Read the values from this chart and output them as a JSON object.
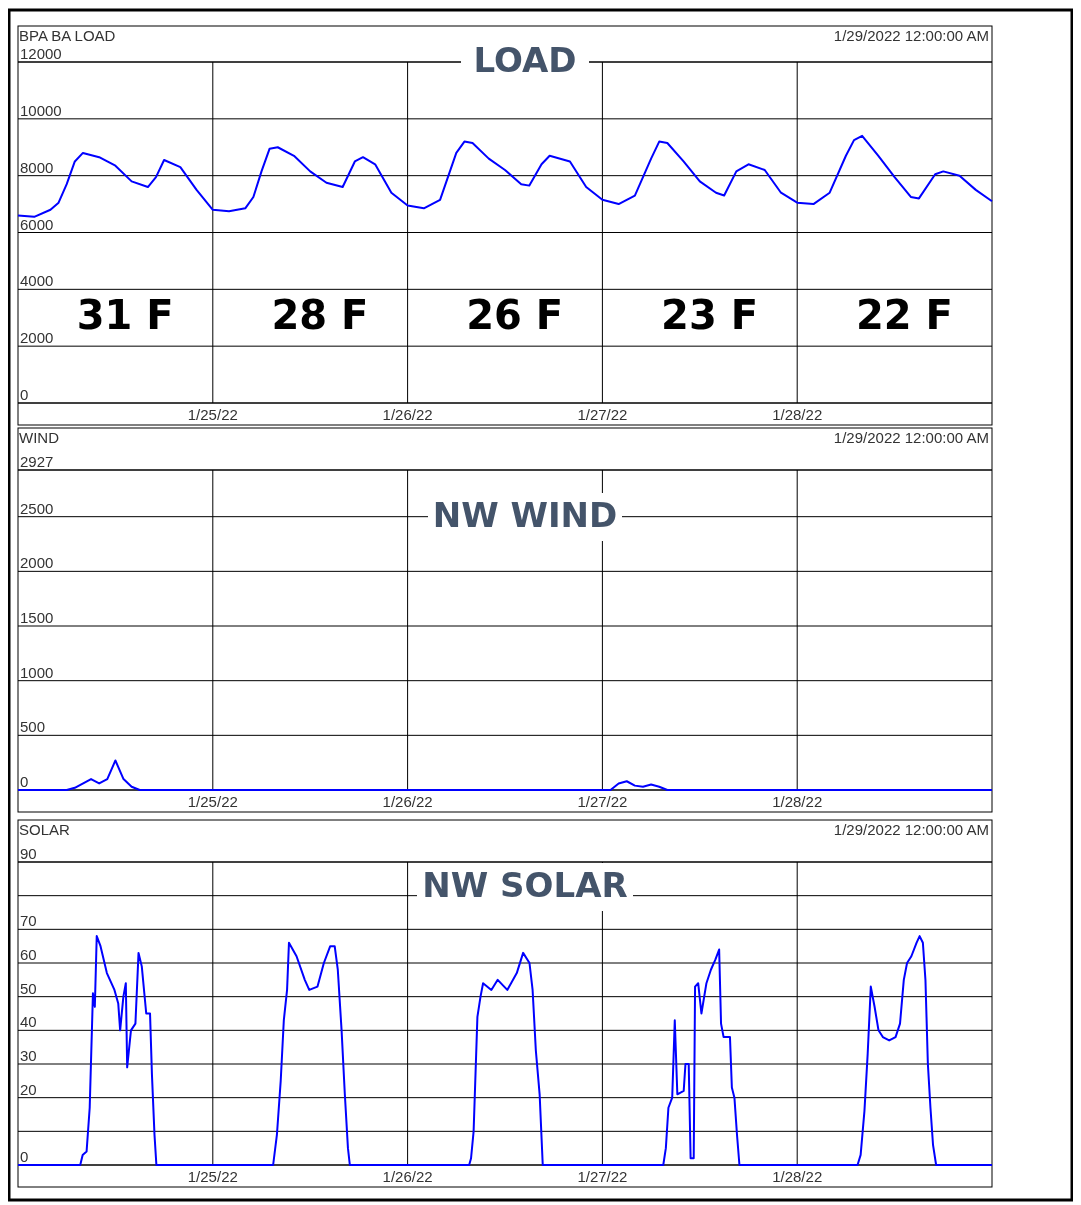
{
  "chart_data": [
    {
      "type": "line",
      "title": "LOAD",
      "subtitle": "BPA BA LOAD",
      "annotations": [
        "1/29/2022 12:00:00 AM",
        "31 F",
        "28 F",
        "26 F",
        "23 F",
        "22 F"
      ],
      "xlim": [
        "2022-01-24",
        "2022-01-29"
      ],
      "xticks": [
        {
          "value": "2022-01-25",
          "label": "1/25/22"
        },
        {
          "value": "2022-01-26",
          "label": "1/26/22"
        },
        {
          "value": "2022-01-27",
          "label": "1/27/22"
        },
        {
          "value": "2022-01-28",
          "label": "1/28/22"
        }
      ],
      "ylim": [
        0,
        12000
      ],
      "yticks": [
        0,
        2000,
        4000,
        6000,
        8000,
        10000,
        12000
      ],
      "grid": true,
      "series": [
        {
          "color": "#0000ff",
          "x": [
            "2022-01-24T00:00",
            "2022-01-24T02:00",
            "2022-01-24T04:00",
            "2022-01-24T05:00",
            "2022-01-24T06:00",
            "2022-01-24T07:00",
            "2022-01-24T08:00",
            "2022-01-24T10:00",
            "2022-01-24T12:00",
            "2022-01-24T14:00",
            "2022-01-24T16:00",
            "2022-01-24T17:00",
            "2022-01-24T18:00",
            "2022-01-24T20:00",
            "2022-01-24T22:00",
            "2022-01-25T00:00",
            "2022-01-25T02:00",
            "2022-01-25T04:00",
            "2022-01-25T05:00",
            "2022-01-25T06:00",
            "2022-01-25T07:00",
            "2022-01-25T08:00",
            "2022-01-25T10:00",
            "2022-01-25T12:00",
            "2022-01-25T14:00",
            "2022-01-25T16:00",
            "2022-01-25T17:30",
            "2022-01-25T18:30",
            "2022-01-25T20:00",
            "2022-01-25T22:00",
            "2022-01-26T00:00",
            "2022-01-26T02:00",
            "2022-01-26T04:00",
            "2022-01-26T06:00",
            "2022-01-26T07:00",
            "2022-01-26T08:00",
            "2022-01-26T10:00",
            "2022-01-26T12:00",
            "2022-01-26T14:00",
            "2022-01-26T15:00",
            "2022-01-26T16:30",
            "2022-01-26T17:30",
            "2022-01-26T20:00",
            "2022-01-26T22:00",
            "2022-01-27T00:00",
            "2022-01-27T02:00",
            "2022-01-27T04:00",
            "2022-01-27T06:00",
            "2022-01-27T07:00",
            "2022-01-27T08:00",
            "2022-01-27T10:00",
            "2022-01-27T12:00",
            "2022-01-27T14:00",
            "2022-01-27T15:00",
            "2022-01-27T16:30",
            "2022-01-27T18:00",
            "2022-01-27T20:00",
            "2022-01-27T22:00",
            "2022-01-28T00:00",
            "2022-01-28T02:00",
            "2022-01-28T04:00",
            "2022-01-28T06:00",
            "2022-01-28T07:00",
            "2022-01-28T08:00",
            "2022-01-28T10:00",
            "2022-01-28T12:00",
            "2022-01-28T14:00",
            "2022-01-28T15:00",
            "2022-01-28T17:00",
            "2022-01-28T18:00",
            "2022-01-28T20:00",
            "2022-01-28T22:00",
            "2022-01-29T00:00"
          ],
          "values": [
            6600,
            6550,
            6800,
            7050,
            7700,
            8500,
            8800,
            8650,
            8350,
            7800,
            7600,
            7950,
            8550,
            8300,
            7500,
            6800,
            6750,
            6850,
            7250,
            8150,
            8950,
            9000,
            8700,
            8150,
            7750,
            7600,
            8500,
            8650,
            8400,
            7400,
            6950,
            6850,
            7150,
            8800,
            9200,
            9150,
            8600,
            8200,
            7700,
            7650,
            8400,
            8700,
            8500,
            7600,
            7150,
            7000,
            7300,
            8600,
            9200,
            9150,
            8500,
            7800,
            7400,
            7300,
            8150,
            8400,
            8200,
            7400,
            7050,
            7000,
            7400,
            8700,
            9250,
            9400,
            8700,
            7950,
            7250,
            7200,
            8050,
            8150,
            8000,
            7500,
            7100
          ]
        }
      ]
    },
    {
      "type": "line",
      "title": "NW WIND",
      "subtitle": "WIND",
      "annotations": [
        "1/29/2022 12:00:00 AM"
      ],
      "xlim": [
        "2022-01-24",
        "2022-01-29"
      ],
      "xticks": [
        {
          "value": "2022-01-25",
          "label": "1/25/22"
        },
        {
          "value": "2022-01-26",
          "label": "1/26/22"
        },
        {
          "value": "2022-01-27",
          "label": "1/27/22"
        },
        {
          "value": "2022-01-28",
          "label": "1/28/22"
        }
      ],
      "ylim": [
        0,
        2927
      ],
      "yticks": [
        0,
        500,
        1000,
        1500,
        2000,
        2500,
        2927
      ],
      "grid": true,
      "series": [
        {
          "color": "#0000ff",
          "x": [
            "2022-01-24T00:00",
            "2022-01-24T06:00",
            "2022-01-24T07:00",
            "2022-01-24T09:00",
            "2022-01-24T10:00",
            "2022-01-24T11:00",
            "2022-01-24T12:00",
            "2022-01-24T13:00",
            "2022-01-24T14:00",
            "2022-01-24T15:00",
            "2022-01-25T00:00",
            "2022-01-26T00:00",
            "2022-01-27T00:00",
            "2022-01-27T01:00",
            "2022-01-27T02:00",
            "2022-01-27T03:00",
            "2022-01-27T04:00",
            "2022-01-27T05:00",
            "2022-01-27T06:00",
            "2022-01-27T07:00",
            "2022-01-27T08:00",
            "2022-01-28T00:00",
            "2022-01-29T00:00"
          ],
          "values": [
            0,
            0,
            20,
            100,
            60,
            100,
            270,
            100,
            30,
            0,
            0,
            0,
            0,
            0,
            60,
            80,
            40,
            30,
            50,
            30,
            0,
            0,
            0
          ]
        }
      ]
    },
    {
      "type": "line",
      "title": "NW SOLAR",
      "subtitle": "SOLAR",
      "annotations": [
        "1/29/2022 12:00:00 AM"
      ],
      "xlim": [
        "2022-01-24",
        "2022-01-29"
      ],
      "xticks": [
        {
          "value": "2022-01-25",
          "label": "1/25/22"
        },
        {
          "value": "2022-01-26",
          "label": "1/26/22"
        },
        {
          "value": "2022-01-27",
          "label": "1/27/22"
        },
        {
          "value": "2022-01-28",
          "label": "1/28/22"
        }
      ],
      "ylim": [
        0,
        90
      ],
      "yticks": [
        0,
        {
          "value": 10,
          "label": null
        },
        20,
        30,
        40,
        50,
        60,
        70,
        {
          "value": 80,
          "label": null
        },
        90
      ],
      "grid": true,
      "series": [
        {
          "color": "#0000ff",
          "x": [
            "2022-01-24T00:00",
            "2022-01-24T07:40",
            "2022-01-24T07:58",
            "2022-01-24T08:27",
            "2022-01-24T08:50",
            "2022-01-24T09:14",
            "2022-01-24T09:28",
            "2022-01-24T09:42",
            "2022-01-24T10:10",
            "2022-01-24T10:57",
            "2022-01-24T11:53",
            "2022-01-24T12:21",
            "2022-01-24T12:35",
            "2022-01-24T12:59",
            "2022-01-24T13:17",
            "2022-01-24T13:27",
            "2022-01-24T13:55",
            "2022-01-24T14:28",
            "2022-01-24T14:51",
            "2022-01-24T15:15",
            "2022-01-24T15:48",
            "2022-01-24T16:16",
            "2022-01-24T16:30",
            "2022-01-24T16:49",
            "2022-01-24T17:03",
            "2022-01-25T07:26",
            "2022-01-25T07:54",
            "2022-01-25T08:22",
            "2022-01-25T08:45",
            "2022-01-25T09:09",
            "2022-01-25T09:23",
            "2022-01-25T10:19",
            "2022-01-25T11:20",
            "2022-01-25T11:53",
            "2022-01-25T12:54",
            "2022-01-25T13:41",
            "2022-01-25T14:28",
            "2022-01-25T15:01",
            "2022-01-25T15:24",
            "2022-01-25T15:52",
            "2022-01-25T16:16",
            "2022-01-25T16:39",
            "2022-01-25T16:53",
            "2022-01-26T07:35",
            "2022-01-26T07:49",
            "2022-01-26T08:08",
            "2022-01-26T08:36",
            "2022-01-26T08:59",
            "2022-01-26T09:18",
            "2022-01-26T10:19",
            "2022-01-26T11:06",
            "2022-01-26T12:17",
            "2022-01-26T13:27",
            "2022-01-26T14:14",
            "2022-01-26T15:01",
            "2022-01-26T15:24",
            "2022-01-26T15:48",
            "2022-01-26T16:16",
            "2022-01-26T16:39",
            "2022-01-27T07:30",
            "2022-01-27T07:49",
            "2022-01-27T08:08",
            "2022-01-27T08:36",
            "2022-01-27T08:55",
            "2022-01-27T09:14",
            "2022-01-27T10:01",
            "2022-01-27T10:14",
            "2022-01-27T10:38",
            "2022-01-27T10:52",
            "2022-01-27T11:15",
            "2022-01-27T11:25",
            "2022-01-27T11:48",
            "2022-01-27T12:12",
            "2022-01-27T12:49",
            "2022-01-27T13:22",
            "2022-01-27T13:55",
            "2022-01-27T14:23",
            "2022-01-27T14:37",
            "2022-01-27T14:56",
            "2022-01-27T15:43",
            "2022-01-27T15:57",
            "2022-01-27T16:16",
            "2022-01-27T16:35",
            "2022-01-27T16:53",
            "2022-01-28T07:26",
            "2022-01-28T07:49",
            "2022-01-28T08:17",
            "2022-01-28T08:41",
            "2022-01-28T09:04",
            "2022-01-28T09:32",
            "2022-01-28T10:01",
            "2022-01-28T10:33",
            "2022-01-28T11:20",
            "2022-01-28T12:07",
            "2022-01-28T12:40",
            "2022-01-28T13:08",
            "2022-01-28T13:32",
            "2022-01-28T14:04",
            "2022-01-28T14:42",
            "2022-01-28T15:05",
            "2022-01-28T15:29",
            "2022-01-28T15:48",
            "2022-01-28T16:06",
            "2022-01-28T16:25",
            "2022-01-28T16:44",
            "2022-01-28T17:07",
            "2022-01-29T00:00"
          ],
          "values": [
            0,
            0,
            3,
            4,
            17,
            51,
            47,
            68,
            65,
            57,
            52,
            48,
            40,
            50,
            54,
            29,
            40,
            42,
            63,
            59,
            45,
            45,
            27,
            9,
            0,
            0,
            9,
            25,
            43,
            52,
            66,
            62,
            55,
            52,
            53,
            60,
            65,
            65,
            58,
            40,
            21,
            5,
            0,
            0,
            2,
            10,
            44,
            50,
            54,
            52,
            55,
            52,
            57,
            63,
            60,
            52,
            34,
            21,
            0,
            0,
            5,
            17,
            20,
            43,
            21,
            22,
            30,
            30,
            2,
            2,
            53,
            54,
            45,
            54,
            58,
            61,
            64,
            42,
            38,
            38,
            23,
            20,
            9,
            0,
            0,
            3,
            16,
            33,
            53,
            47,
            40,
            38,
            37,
            38,
            42,
            55,
            60,
            62,
            66,
            68,
            66,
            55,
            30,
            17,
            6,
            0,
            0
          ]
        }
      ]
    }
  ]
}
